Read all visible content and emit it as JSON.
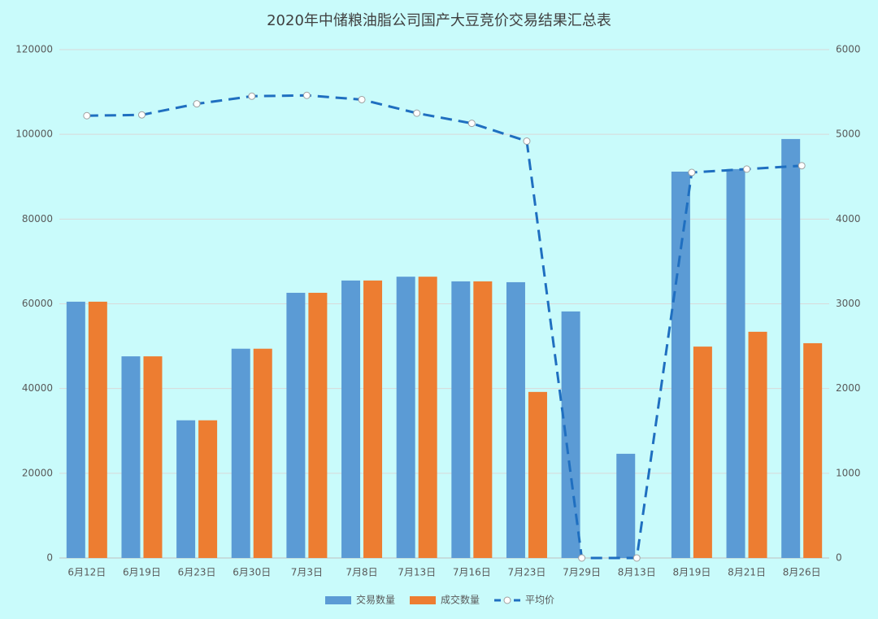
{
  "chart_data": {
    "type": "bar-line",
    "title": "2020年中储粮油脂公司国产大豆竞价交易结果汇总表",
    "categories": [
      "6月12日",
      "6月19日",
      "6月23日",
      "6月30日",
      "7月3日",
      "7月8日",
      "7月13日",
      "7月16日",
      "7月23日",
      "7月29日",
      "8月13日",
      "8月19日",
      "8月21日",
      "8月26日"
    ],
    "series": [
      {
        "name": "交易数量",
        "color": "#5b9bd5",
        "type": "bar",
        "values": [
          60500,
          47600,
          32500,
          49400,
          62600,
          65500,
          66400,
          65300,
          65100,
          58200,
          24600,
          91200,
          91800,
          98900
        ]
      },
      {
        "name": "成交数量",
        "color": "#ed7d31",
        "type": "bar",
        "values": [
          60500,
          47600,
          32500,
          49400,
          62600,
          65500,
          66400,
          65300,
          39200,
          0,
          0,
          49900,
          53400,
          50700
        ]
      },
      {
        "name": "平均价",
        "color": "#1f6fc0",
        "type": "line",
        "axis": "y2",
        "values": [
          5220,
          5230,
          5360,
          5450,
          5460,
          5410,
          5250,
          5130,
          4920,
          0,
          0,
          4550,
          4590,
          4630
        ]
      }
    ],
    "ylim": [
      0,
      120000
    ],
    "yticks": [
      0,
      20000,
      40000,
      60000,
      80000,
      100000,
      120000
    ],
    "y2lim": [
      0,
      6000
    ],
    "y2ticks": [
      0,
      1000,
      2000,
      3000,
      4000,
      5000,
      6000
    ],
    "grid": true,
    "legend": "bottom"
  }
}
